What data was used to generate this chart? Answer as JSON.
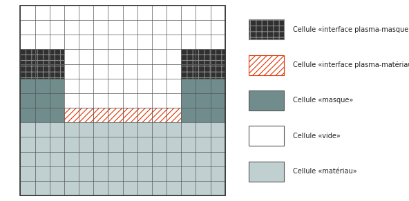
{
  "grid_cols": 14,
  "grid_rows": 13,
  "color_vide": "#ffffff",
  "color_masque": "#708c8c",
  "color_materiau": "#c0d0d0",
  "color_ipm_bg": "#303030",
  "color_ipm_hatch": "#888888",
  "color_ipmat_bg": "#ffffff",
  "color_ipmat_hatch": "#dd3300",
  "color_grid_line": "#555555",
  "color_border": "#333333",
  "legend_items": [
    {
      "label": "Cellule «interface plasma-masque»",
      "fc": "#303030",
      "hatch": "++",
      "ec": "#888888"
    },
    {
      "label": "Cellule «interface plasma-matériau»",
      "fc": "#ffffff",
      "hatch": "////",
      "ec": "#dd3300"
    },
    {
      "label": "Cellule «masque»",
      "fc": "#708c8c",
      "hatch": null,
      "ec": "#555555"
    },
    {
      "label": "Cellule «vide»",
      "fc": "#ffffff",
      "hatch": null,
      "ec": "#555555"
    },
    {
      "label": "Cellule «matériau»",
      "fc": "#c0d0d0",
      "hatch": null,
      "ec": "#555555"
    }
  ],
  "fig_width": 5.92,
  "fig_height": 2.91,
  "dpi": 100
}
